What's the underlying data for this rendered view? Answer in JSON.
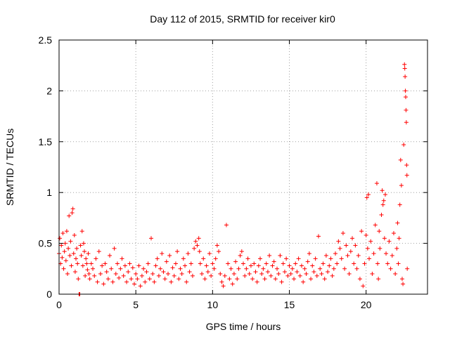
{
  "chart_data": {
    "type": "scatter",
    "title": "Day 112 of 2015, SRMTID for receiver kir0",
    "xlabel": "GPS time / hours",
    "ylabel": "SRMTID / TECUs",
    "xlim": [
      0,
      24
    ],
    "ylim": [
      0,
      2.5
    ],
    "x_ticks": [
      0,
      5,
      10,
      15,
      20
    ],
    "x_tick_labels": [
      "0",
      "5",
      "10",
      "15",
      "20"
    ],
    "y_ticks": [
      0,
      0.5,
      1,
      1.5,
      2,
      2.5
    ],
    "y_tick_labels": [
      "0",
      "0.5",
      "1",
      "1.5",
      "2",
      "2.5"
    ],
    "grid": true,
    "marker": "+",
    "series": [
      {
        "name": "kir0",
        "color": "#ff0000",
        "points": [
          [
            0.0,
            0.4
          ],
          [
            0.05,
            0.55
          ],
          [
            0.1,
            0.3
          ],
          [
            0.15,
            0.48
          ],
          [
            0.2,
            0.36
          ],
          [
            0.25,
            0.6
          ],
          [
            0.3,
            0.25
          ],
          [
            0.35,
            0.42
          ],
          [
            0.4,
            0.5
          ],
          [
            0.45,
            0.33
          ],
          [
            0.5,
            0.62
          ],
          [
            0.55,
            0.2
          ],
          [
            0.6,
            0.45
          ],
          [
            0.65,
            0.77
          ],
          [
            0.7,
            0.38
          ],
          [
            0.75,
            0.52
          ],
          [
            0.8,
            0.28
          ],
          [
            0.85,
            0.8
          ],
          [
            0.9,
            0.84
          ],
          [
            0.95,
            0.4
          ],
          [
            1.0,
            0.58
          ],
          [
            1.05,
            0.22
          ],
          [
            1.1,
            0.35
          ],
          [
            1.15,
            0.45
          ],
          [
            1.2,
            0.3
          ],
          [
            1.25,
            0.15
          ],
          [
            1.3,
            0.0
          ],
          [
            1.35,
            0.0
          ],
          [
            1.4,
            0.48
          ],
          [
            1.45,
            0.38
          ],
          [
            1.5,
            0.62
          ],
          [
            1.55,
            0.28
          ],
          [
            1.6,
            0.5
          ],
          [
            1.65,
            0.42
          ],
          [
            1.7,
            0.18
          ],
          [
            1.75,
            0.35
          ],
          [
            1.8,
            0.3
          ],
          [
            1.85,
            0.24
          ],
          [
            1.9,
            0.4
          ],
          [
            1.95,
            0.2
          ],
          [
            2.0,
            0.15
          ],
          [
            2.1,
            0.3
          ],
          [
            2.2,
            0.25
          ],
          [
            2.3,
            0.18
          ],
          [
            2.4,
            0.35
          ],
          [
            2.5,
            0.12
          ],
          [
            2.6,
            0.42
          ],
          [
            2.7,
            0.2
          ],
          [
            2.8,
            0.28
          ],
          [
            2.9,
            0.1
          ],
          [
            3.0,
            0.3
          ],
          [
            3.1,
            0.22
          ],
          [
            3.2,
            0.15
          ],
          [
            3.3,
            0.38
          ],
          [
            3.4,
            0.25
          ],
          [
            3.5,
            0.12
          ],
          [
            3.6,
            0.45
          ],
          [
            3.7,
            0.2
          ],
          [
            3.8,
            0.3
          ],
          [
            3.9,
            0.16
          ],
          [
            4.0,
            0.25
          ],
          [
            4.1,
            0.35
          ],
          [
            4.2,
            0.18
          ],
          [
            4.3,
            0.28
          ],
          [
            4.4,
            0.12
          ],
          [
            4.5,
            0.22
          ],
          [
            4.6,
            0.3
          ],
          [
            4.7,
            0.15
          ],
          [
            4.8,
            0.26
          ],
          [
            4.9,
            0.1
          ],
          [
            5.0,
            0.2
          ],
          [
            5.1,
            0.15
          ],
          [
            5.2,
            0.28
          ],
          [
            5.3,
            0.08
          ],
          [
            5.4,
            0.18
          ],
          [
            5.5,
            0.25
          ],
          [
            5.6,
            0.12
          ],
          [
            5.7,
            0.22
          ],
          [
            5.8,
            0.3
          ],
          [
            5.9,
            0.15
          ],
          [
            6.0,
            0.55
          ],
          [
            6.1,
            0.2
          ],
          [
            6.2,
            0.12
          ],
          [
            6.3,
            0.28
          ],
          [
            6.4,
            0.35
          ],
          [
            6.5,
            0.18
          ],
          [
            6.6,
            0.25
          ],
          [
            6.7,
            0.4
          ],
          [
            6.8,
            0.22
          ],
          [
            6.9,
            0.15
          ],
          [
            7.0,
            0.32
          ],
          [
            7.1,
            0.2
          ],
          [
            7.2,
            0.38
          ],
          [
            7.3,
            0.12
          ],
          [
            7.4,
            0.26
          ],
          [
            7.5,
            0.18
          ],
          [
            7.6,
            0.3
          ],
          [
            7.7,
            0.42
          ],
          [
            7.8,
            0.15
          ],
          [
            7.9,
            0.25
          ],
          [
            8.0,
            0.2
          ],
          [
            8.1,
            0.35
          ],
          [
            8.2,
            0.28
          ],
          [
            8.3,
            0.12
          ],
          [
            8.4,
            0.4
          ],
          [
            8.5,
            0.22
          ],
          [
            8.6,
            0.3
          ],
          [
            8.7,
            0.18
          ],
          [
            8.8,
            0.45
          ],
          [
            8.9,
            0.52
          ],
          [
            9.0,
            0.48
          ],
          [
            9.1,
            0.55
          ],
          [
            9.15,
            0.42
          ],
          [
            9.2,
            0.3
          ],
          [
            9.3,
            0.2
          ],
          [
            9.4,
            0.35
          ],
          [
            9.5,
            0.15
          ],
          [
            9.6,
            0.28
          ],
          [
            9.7,
            0.22
          ],
          [
            9.8,
            0.4
          ],
          [
            9.9,
            0.18
          ],
          [
            10.0,
            0.3
          ],
          [
            10.1,
            0.25
          ],
          [
            10.2,
            0.35
          ],
          [
            10.3,
            0.48
          ],
          [
            10.4,
            0.42
          ],
          [
            10.5,
            0.2
          ],
          [
            10.6,
            0.12
          ],
          [
            10.7,
            0.08
          ],
          [
            10.8,
            0.18
          ],
          [
            10.9,
            0.68
          ],
          [
            11.0,
            0.3
          ],
          [
            11.1,
            0.15
          ],
          [
            11.2,
            0.25
          ],
          [
            11.3,
            0.1
          ],
          [
            11.4,
            0.2
          ],
          [
            11.5,
            0.32
          ],
          [
            11.6,
            0.15
          ],
          [
            11.7,
            0.25
          ],
          [
            11.8,
            0.38
          ],
          [
            11.9,
            0.42
          ],
          [
            12.0,
            0.3
          ],
          [
            12.1,
            0.18
          ],
          [
            12.2,
            0.25
          ],
          [
            12.3,
            0.35
          ],
          [
            12.4,
            0.2
          ],
          [
            12.5,
            0.28
          ],
          [
            12.6,
            0.15
          ],
          [
            12.7,
            0.3
          ],
          [
            12.8,
            0.22
          ],
          [
            12.9,
            0.12
          ],
          [
            13.0,
            0.28
          ],
          [
            13.1,
            0.35
          ],
          [
            13.2,
            0.2
          ],
          [
            13.3,
            0.25
          ],
          [
            13.4,
            0.15
          ],
          [
            13.5,
            0.3
          ],
          [
            13.6,
            0.22
          ],
          [
            13.7,
            0.38
          ],
          [
            13.8,
            0.18
          ],
          [
            13.9,
            0.28
          ],
          [
            14.0,
            0.32
          ],
          [
            14.1,
            0.15
          ],
          [
            14.2,
            0.25
          ],
          [
            14.3,
            0.2
          ],
          [
            14.4,
            0.38
          ],
          [
            14.5,
            0.12
          ],
          [
            14.6,
            0.3
          ],
          [
            14.7,
            0.22
          ],
          [
            14.8,
            0.35
          ],
          [
            14.9,
            0.18
          ],
          [
            15.0,
            0.28
          ],
          [
            15.1,
            0.2
          ],
          [
            15.2,
            0.25
          ],
          [
            15.3,
            0.15
          ],
          [
            15.4,
            0.3
          ],
          [
            15.5,
            0.22
          ],
          [
            15.6,
            0.35
          ],
          [
            15.7,
            0.18
          ],
          [
            15.8,
            0.28
          ],
          [
            15.9,
            0.12
          ],
          [
            16.0,
            0.25
          ],
          [
            16.1,
            0.2
          ],
          [
            16.2,
            0.32
          ],
          [
            16.3,
            0.4
          ],
          [
            16.4,
            0.15
          ],
          [
            16.5,
            0.28
          ],
          [
            16.6,
            0.22
          ],
          [
            16.7,
            0.35
          ],
          [
            16.8,
            0.18
          ],
          [
            16.9,
            0.57
          ],
          [
            17.0,
            0.25
          ],
          [
            17.1,
            0.2
          ],
          [
            17.2,
            0.3
          ],
          [
            17.3,
            0.15
          ],
          [
            17.4,
            0.38
          ],
          [
            17.5,
            0.22
          ],
          [
            17.6,
            0.28
          ],
          [
            17.7,
            0.35
          ],
          [
            17.8,
            0.18
          ],
          [
            17.9,
            0.25
          ],
          [
            18.0,
            0.4
          ],
          [
            18.1,
            0.3
          ],
          [
            18.2,
            0.52
          ],
          [
            18.3,
            0.45
          ],
          [
            18.4,
            0.35
          ],
          [
            18.5,
            0.6
          ],
          [
            18.6,
            0.25
          ],
          [
            18.7,
            0.48
          ],
          [
            18.8,
            0.38
          ],
          [
            18.9,
            0.2
          ],
          [
            19.0,
            0.42
          ],
          [
            19.1,
            0.55
          ],
          [
            19.2,
            0.3
          ],
          [
            19.3,
            0.48
          ],
          [
            19.4,
            0.25
          ],
          [
            19.5,
            0.38
          ],
          [
            19.6,
            0.15
          ],
          [
            19.7,
            0.62
          ],
          [
            19.8,
            0.08
          ],
          [
            19.9,
            0.3
          ],
          [
            20.0,
            0.58
          ],
          [
            20.05,
            0.95
          ],
          [
            20.1,
            0.45
          ],
          [
            20.15,
            0.98
          ],
          [
            20.2,
            0.35
          ],
          [
            20.3,
            0.52
          ],
          [
            20.4,
            0.2
          ],
          [
            20.5,
            0.4
          ],
          [
            20.6,
            0.68
          ],
          [
            20.7,
            1.09
          ],
          [
            20.75,
            0.3
          ],
          [
            20.8,
            0.15
          ],
          [
            20.85,
            0.62
          ],
          [
            20.9,
            0.45
          ],
          [
            21.0,
            0.78
          ],
          [
            21.05,
            1.02
          ],
          [
            21.1,
            0.88
          ],
          [
            21.15,
            0.92
          ],
          [
            21.2,
            0.55
          ],
          [
            21.25,
            0.98
          ],
          [
            21.3,
            0.4
          ],
          [
            21.4,
            0.3
          ],
          [
            21.5,
            0.52
          ],
          [
            21.6,
            0.25
          ],
          [
            21.7,
            0.38
          ],
          [
            21.8,
            0.6
          ],
          [
            21.9,
            0.2
          ],
          [
            22.0,
            0.45
          ],
          [
            22.05,
            0.7
          ],
          [
            22.1,
            0.3
          ],
          [
            22.15,
            0.55
          ],
          [
            22.2,
            0.88
          ],
          [
            22.25,
            1.32
          ],
          [
            22.3,
            1.07
          ],
          [
            22.35,
            0.15
          ],
          [
            22.4,
            0.1
          ],
          [
            22.45,
            1.47
          ],
          [
            22.5,
            2.26
          ],
          [
            22.52,
            2.22
          ],
          [
            22.54,
            2.14
          ],
          [
            22.56,
            2.0
          ],
          [
            22.58,
            1.94
          ],
          [
            22.6,
            1.81
          ],
          [
            22.62,
            1.69
          ],
          [
            22.64,
            1.27
          ],
          [
            22.66,
            1.17
          ],
          [
            22.68,
            0.25
          ]
        ]
      }
    ]
  }
}
